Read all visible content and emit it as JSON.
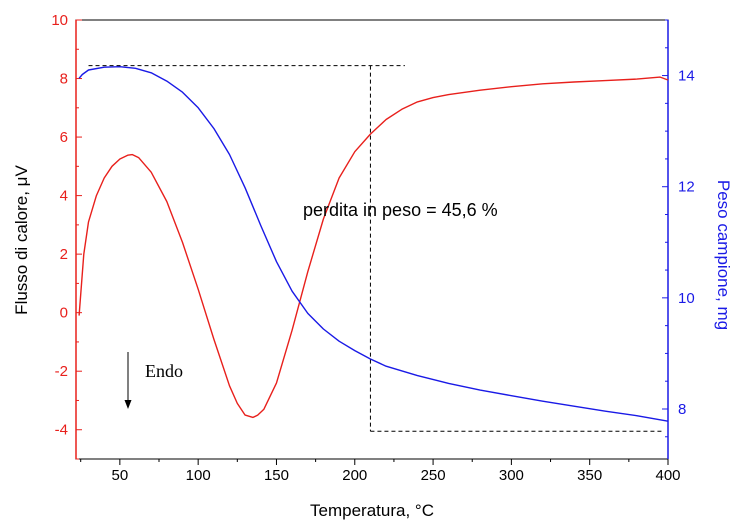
{
  "chart_data": {
    "type": "line",
    "title": "",
    "xlabel": "Temperatura, °C",
    "ylabel_left": "Flusso di calore, μV",
    "ylabel_right": "Peso campione, mg",
    "xlim": [
      22,
      400
    ],
    "ylim_left": [
      -5,
      10
    ],
    "ylim_right": [
      7.1,
      15
    ],
    "x_ticks": [
      50,
      100,
      150,
      200,
      250,
      300,
      350,
      400
    ],
    "y_left_ticks": [
      -4,
      -2,
      0,
      2,
      4,
      6,
      8,
      10
    ],
    "y_right_ticks": [
      8,
      10,
      12,
      14
    ],
    "grid": false,
    "series": [
      {
        "axis": "left",
        "color": "#e8201c",
        "x": [
          24,
          27,
          30,
          35,
          40,
          45,
          50,
          55,
          58,
          62,
          70,
          80,
          90,
          100,
          110,
          120,
          125,
          130,
          135,
          138,
          142,
          150,
          160,
          170,
          180,
          190,
          200,
          210,
          220,
          230,
          240,
          250,
          260,
          280,
          300,
          320,
          340,
          360,
          380,
          395,
          400
        ],
        "y": [
          -0.1,
          2.0,
          3.1,
          4.0,
          4.6,
          5.0,
          5.25,
          5.38,
          5.4,
          5.3,
          4.8,
          3.8,
          2.4,
          0.8,
          -0.9,
          -2.5,
          -3.1,
          -3.5,
          -3.58,
          -3.5,
          -3.3,
          -2.4,
          -0.6,
          1.4,
          3.2,
          4.6,
          5.5,
          6.1,
          6.6,
          6.95,
          7.2,
          7.35,
          7.45,
          7.6,
          7.72,
          7.82,
          7.88,
          7.93,
          7.98,
          8.05,
          7.95
        ]
      },
      {
        "axis": "right",
        "color": "#1a1ae6",
        "x": [
          24,
          26,
          30,
          40,
          50,
          60,
          70,
          80,
          90,
          100,
          110,
          120,
          130,
          140,
          150,
          160,
          170,
          180,
          190,
          200,
          210,
          220,
          240,
          260,
          280,
          300,
          320,
          340,
          360,
          380,
          400
        ],
        "y": [
          13.95,
          14.02,
          14.1,
          14.15,
          14.16,
          14.13,
          14.05,
          13.9,
          13.7,
          13.42,
          13.05,
          12.58,
          11.98,
          11.3,
          10.65,
          10.12,
          9.72,
          9.44,
          9.22,
          9.05,
          8.9,
          8.77,
          8.6,
          8.46,
          8.34,
          8.24,
          8.14,
          8.05,
          7.96,
          7.88,
          7.78
        ]
      }
    ],
    "annotations": {
      "mass_loss": "perdita in peso = 45,6 %",
      "endo": "Endo",
      "dashed_upper_right": {
        "x1": 30,
        "x2": 232,
        "y": 14.18
      },
      "dashed_lower_right": {
        "x1": 210,
        "x2": 397,
        "y": 7.6
      },
      "dashed_vertical_x": 210
    },
    "colors": {
      "left_axis": "#e8201c",
      "right_axis": "#1a1ae6"
    }
  }
}
